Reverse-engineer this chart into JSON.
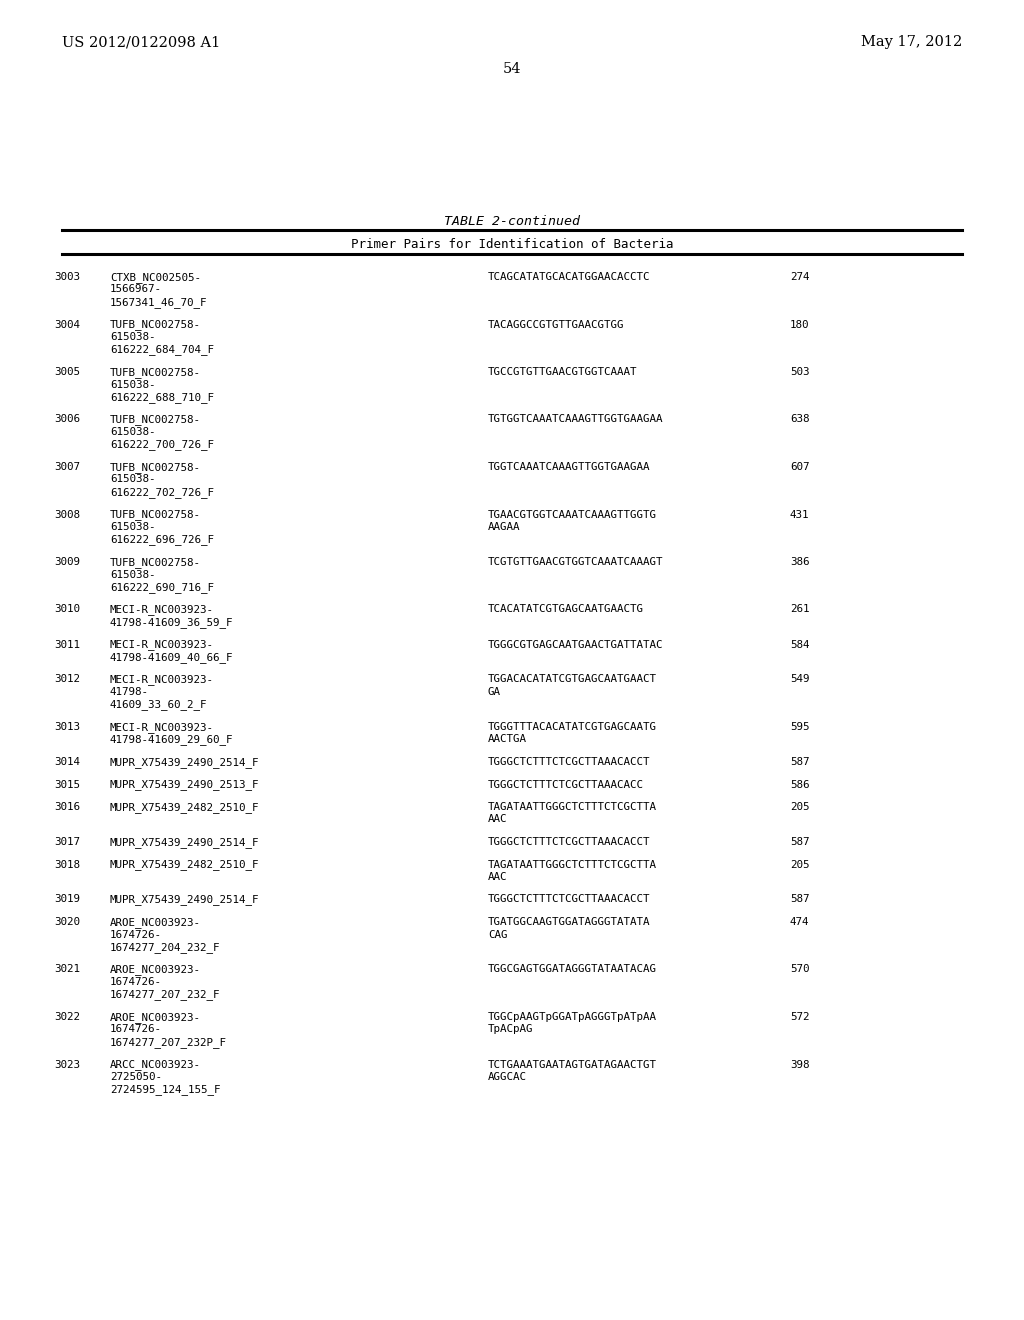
{
  "page_header_left": "US 2012/0122098 A1",
  "page_header_right": "May 17, 2012",
  "page_number": "54",
  "table_title": "TABLE 2-continued",
  "table_subtitle": "Primer Pairs for Identification of Bacteria",
  "background_color": "#ffffff",
  "text_color": "#000000",
  "rows": [
    {
      "num": "3003",
      "name_lines": [
        "CTXB_NC002505-",
        "1566967-",
        "1567341_46_70_F"
      ],
      "sequence": "TCAGCATATGCACATGGAACACCTC",
      "value": "274"
    },
    {
      "num": "3004",
      "name_lines": [
        "TUFB_NC002758-",
        "615038-",
        "616222_684_704_F"
      ],
      "sequence": "TACAGGCCGTGTTGAACGTGG",
      "value": "180"
    },
    {
      "num": "3005",
      "name_lines": [
        "TUFB_NC002758-",
        "615038-",
        "616222_688_710_F"
      ],
      "sequence": "TGCCGTGTTGAACGTGGTCAAAT",
      "value": "503"
    },
    {
      "num": "3006",
      "name_lines": [
        "TUFB_NC002758-",
        "615038-",
        "616222_700_726_F"
      ],
      "sequence": "TGTGGTCAAATCAAAGTTGGTGAAGAA",
      "value": "638"
    },
    {
      "num": "3007",
      "name_lines": [
        "TUFB_NC002758-",
        "615038-",
        "616222_702_726_F"
      ],
      "sequence": "TGGTCAAATCAAAGTTGGTGAAGAA",
      "value": "607"
    },
    {
      "num": "3008",
      "name_lines": [
        "TUFB_NC002758-",
        "615038-",
        "616222_696_726_F"
      ],
      "sequence_lines": [
        "TGAACGTGGTCAAATCAAAGTTGGTG",
        "AAGAA"
      ],
      "value": "431"
    },
    {
      "num": "3009",
      "name_lines": [
        "TUFB_NC002758-",
        "615038-",
        "616222_690_716_F"
      ],
      "sequence": "TCGTGTTGAACGTGGTCAAATCAAAGT",
      "value": "386"
    },
    {
      "num": "3010",
      "name_lines": [
        "MECI-R_NC003923-",
        "41798-41609_36_59_F"
      ],
      "sequence": "TCACATATCGTGAGCAATGAACTG",
      "value": "261"
    },
    {
      "num": "3011",
      "name_lines": [
        "MECI-R_NC003923-",
        "41798-41609_40_66_F"
      ],
      "sequence": "TGGGCGTGAGCAATGAACTGATTATAC",
      "value": "584"
    },
    {
      "num": "3012",
      "name_lines": [
        "MECI-R_NC003923-",
        "41798-",
        "41609_33_60_2_F"
      ],
      "sequence_lines": [
        "TGGACACATATCGTGAGCAATGAACT",
        "GA"
      ],
      "value": "549"
    },
    {
      "num": "3013",
      "name_lines": [
        "MECI-R_NC003923-",
        "41798-41609_29_60_F"
      ],
      "sequence_lines": [
        "TGGGTTTACACATATCGTGAGCAATG",
        "AACTGA"
      ],
      "value": "595"
    },
    {
      "num": "3014",
      "name_lines": [
        "MUPR_X75439_2490_2514_F"
      ],
      "sequence": "TGGGCTCTTTCTCGCTTAAACACCT",
      "value": "587"
    },
    {
      "num": "3015",
      "name_lines": [
        "MUPR_X75439_2490_2513_F"
      ],
      "sequence": "TGGGCTCTTTCTCGCTTAAACACC",
      "value": "586"
    },
    {
      "num": "3016",
      "name_lines": [
        "MUPR_X75439_2482_2510_F"
      ],
      "sequence_lines": [
        "TAGATAATTGGGCTCTTTCTCGCTTA",
        "AAC"
      ],
      "value": "205"
    },
    {
      "num": "3017",
      "name_lines": [
        "MUPR_X75439_2490_2514_F"
      ],
      "sequence": "TGGGCTCTTTCTCGCTTAAACACCT",
      "value": "587"
    },
    {
      "num": "3018",
      "name_lines": [
        "MUPR_X75439_2482_2510_F"
      ],
      "sequence_lines": [
        "TAGATAATTGGGCTCTTTCTCGCTTA",
        "AAC"
      ],
      "value": "205"
    },
    {
      "num": "3019",
      "name_lines": [
        "MUPR_X75439_2490_2514_F"
      ],
      "sequence": "TGGGCTCTTTCTCGCTTAAACACCT",
      "value": "587"
    },
    {
      "num": "3020",
      "name_lines": [
        "AROE_NC003923-",
        "1674726-",
        "1674277_204_232_F"
      ],
      "sequence_lines": [
        "TGATGGCAAGTGGATAGGGTATATA",
        "CAG"
      ],
      "value": "474"
    },
    {
      "num": "3021",
      "name_lines": [
        "AROE_NC003923-",
        "1674726-",
        "1674277_207_232_F"
      ],
      "sequence": "TGGCGAGTGGATAGGGTATAATACAG",
      "value": "570"
    },
    {
      "num": "3022",
      "name_lines": [
        "AROE_NC003923-",
        "1674726-",
        "1674277_207_232P_F"
      ],
      "sequence_lines": [
        "TGGCpAAGTpGGATpAGGGTpATpAA",
        "TpACpAG"
      ],
      "value": "572"
    },
    {
      "num": "3023",
      "name_lines": [
        "ARCC_NC003923-",
        "2725050-",
        "2724595_124_155_F"
      ],
      "sequence_lines": [
        "TCTGAAATGAATAGTGATAGAACTGT",
        "AGGCAC"
      ],
      "value": "398"
    }
  ]
}
